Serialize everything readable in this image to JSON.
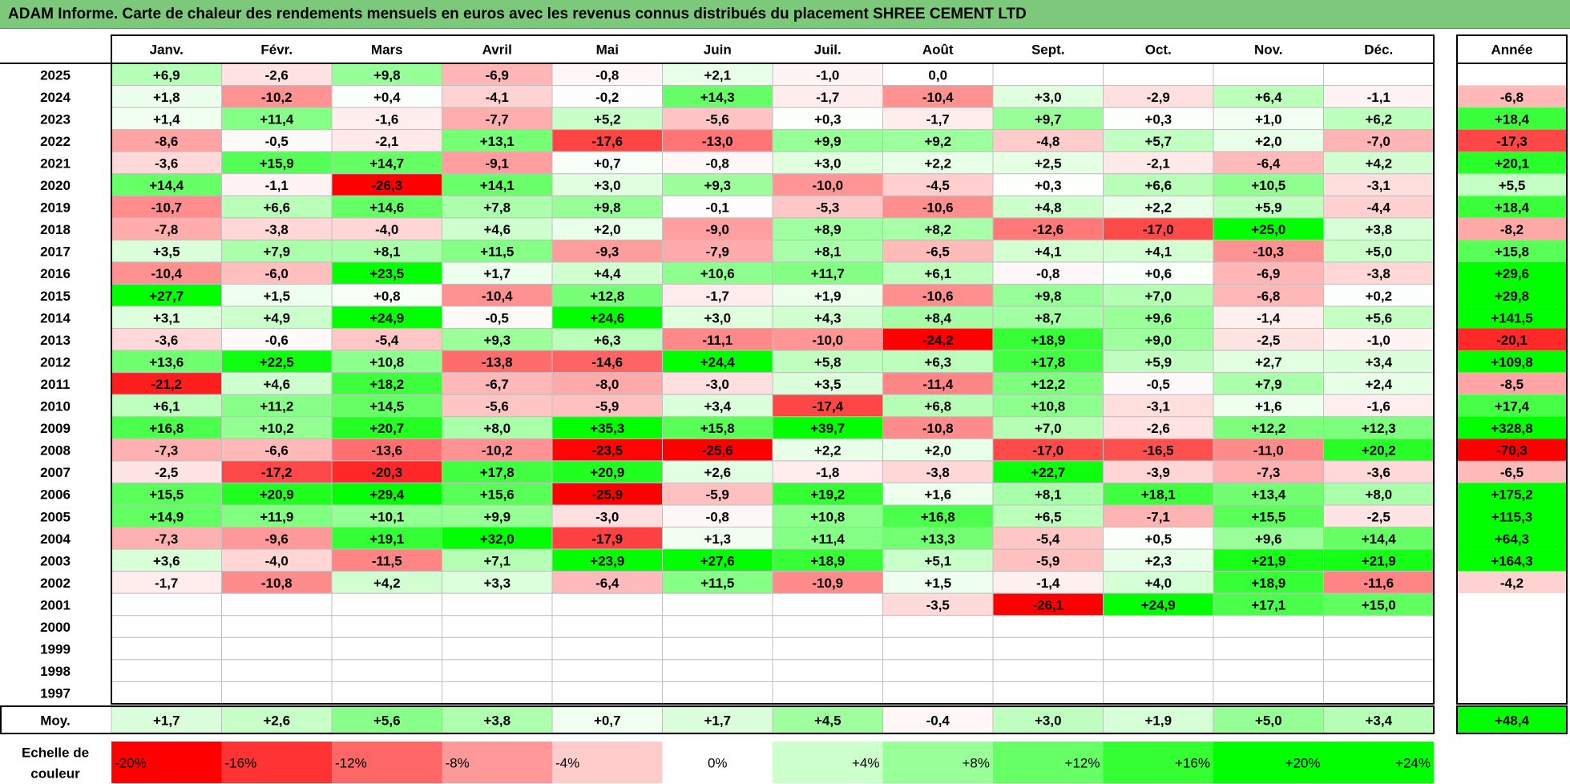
{
  "title": "ADAM Informe. Carte de chaleur des rendements mensuels en euros avec les revenus connus distribués du placement SHREE CEMENT LTD",
  "chart_data": {
    "type": "heatmap",
    "columns": [
      "Janv.",
      "Févr.",
      "Mars",
      "Avril",
      "Mai",
      "Juin",
      "Juil.",
      "Août",
      "Sept.",
      "Oct.",
      "Nov.",
      "Déc."
    ],
    "year_header": "Année",
    "rows": [
      {
        "year": "2025",
        "months": [
          6.9,
          -2.6,
          9.8,
          -6.9,
          -0.8,
          2.1,
          -1.0,
          0.0,
          null,
          null,
          null,
          null
        ],
        "annual": null
      },
      {
        "year": "2024",
        "months": [
          1.8,
          -10.2,
          0.4,
          -4.1,
          -0.2,
          14.3,
          -1.7,
          -10.4,
          3.0,
          -2.9,
          6.4,
          -1.1
        ],
        "annual": -6.8
      },
      {
        "year": "2023",
        "months": [
          1.4,
          11.4,
          -1.6,
          -7.7,
          5.2,
          -5.6,
          0.3,
          -1.7,
          9.7,
          0.3,
          1.0,
          6.2
        ],
        "annual": 18.4
      },
      {
        "year": "2022",
        "months": [
          -8.6,
          -0.5,
          -2.1,
          13.1,
          -17.6,
          -13.0,
          9.9,
          9.2,
          -4.8,
          5.7,
          2.0,
          -7.0
        ],
        "annual": -17.3
      },
      {
        "year": "2021",
        "months": [
          -3.6,
          15.9,
          14.7,
          -9.1,
          0.7,
          -0.8,
          3.0,
          2.2,
          2.5,
          -2.1,
          -6.4,
          4.2
        ],
        "annual": 20.1
      },
      {
        "year": "2020",
        "months": [
          14.4,
          -1.1,
          -26.3,
          14.1,
          3.0,
          9.3,
          -10.0,
          -4.5,
          0.3,
          6.6,
          10.5,
          -3.1
        ],
        "annual": 5.5
      },
      {
        "year": "2019",
        "months": [
          -10.7,
          6.6,
          14.6,
          7.8,
          9.8,
          -0.1,
          -5.3,
          -10.6,
          4.8,
          2.2,
          5.9,
          -4.4
        ],
        "annual": 18.4
      },
      {
        "year": "2018",
        "months": [
          -7.8,
          -3.8,
          -4.0,
          4.6,
          2.0,
          -9.0,
          8.9,
          8.2,
          -12.6,
          -17.0,
          25.0,
          3.8
        ],
        "annual": -8.2
      },
      {
        "year": "2017",
        "months": [
          3.5,
          7.9,
          8.1,
          11.5,
          -9.3,
          -7.9,
          8.1,
          -6.5,
          4.1,
          4.1,
          -10.3,
          5.0
        ],
        "annual": 15.8
      },
      {
        "year": "2016",
        "months": [
          -10.4,
          -6.0,
          23.5,
          1.7,
          4.4,
          10.6,
          11.7,
          6.1,
          -0.8,
          0.6,
          -6.9,
          -3.8
        ],
        "annual": 29.6
      },
      {
        "year": "2015",
        "months": [
          27.7,
          1.5,
          0.8,
          -10.4,
          12.8,
          -1.7,
          1.9,
          -10.6,
          9.8,
          7.0,
          -6.8,
          0.2
        ],
        "annual": 29.8
      },
      {
        "year": "2014",
        "months": [
          3.1,
          4.9,
          24.9,
          -0.5,
          24.6,
          3.0,
          4.3,
          8.4,
          8.7,
          9.6,
          -1.4,
          5.6
        ],
        "annual": 141.5
      },
      {
        "year": "2013",
        "months": [
          -3.6,
          -0.6,
          -5.4,
          9.3,
          6.3,
          -11.1,
          -10.0,
          -24.2,
          18.9,
          9.0,
          -2.5,
          -1.0
        ],
        "annual": -20.1
      },
      {
        "year": "2012",
        "months": [
          13.6,
          22.5,
          10.8,
          -13.8,
          -14.6,
          24.4,
          5.8,
          6.3,
          17.8,
          5.9,
          2.7,
          3.4
        ],
        "annual": 109.8
      },
      {
        "year": "2011",
        "months": [
          -21.2,
          4.6,
          18.2,
          -6.7,
          -8.0,
          -3.0,
          3.5,
          -11.4,
          12.2,
          -0.5,
          7.9,
          2.4
        ],
        "annual": -8.5
      },
      {
        "year": "2010",
        "months": [
          6.1,
          11.2,
          14.5,
          -5.6,
          -5.9,
          3.4,
          -17.4,
          6.8,
          10.8,
          -3.1,
          1.6,
          -1.6
        ],
        "annual": 17.4
      },
      {
        "year": "2009",
        "months": [
          16.8,
          10.2,
          20.7,
          8.0,
          35.3,
          15.8,
          39.7,
          -10.8,
          7.0,
          -2.6,
          12.2,
          12.3
        ],
        "annual": 328.8
      },
      {
        "year": "2008",
        "months": [
          -7.3,
          -6.6,
          -13.6,
          -10.2,
          -23.5,
          -25.6,
          2.2,
          2.0,
          -17.0,
          -16.5,
          -11.0,
          20.2
        ],
        "annual": -70.3
      },
      {
        "year": "2007",
        "months": [
          -2.5,
          -17.2,
          -20.3,
          17.8,
          20.9,
          2.6,
          -1.8,
          -3.8,
          22.7,
          -3.9,
          -7.3,
          -3.6
        ],
        "annual": -6.5
      },
      {
        "year": "2006",
        "months": [
          15.5,
          20.9,
          29.4,
          15.6,
          -25.9,
          -5.9,
          19.2,
          1.6,
          8.1,
          18.1,
          13.4,
          8.0
        ],
        "annual": 175.2
      },
      {
        "year": "2005",
        "months": [
          14.9,
          11.9,
          10.1,
          9.9,
          -3.0,
          -0.8,
          10.8,
          16.8,
          6.5,
          -7.1,
          15.5,
          -2.5
        ],
        "annual": 115.3
      },
      {
        "year": "2004",
        "months": [
          -7.3,
          -9.6,
          19.1,
          32.0,
          -17.9,
          1.3,
          11.4,
          13.3,
          -5.4,
          0.5,
          9.6,
          14.4
        ],
        "annual": 64.3
      },
      {
        "year": "2003",
        "months": [
          3.6,
          -4.0,
          -11.5,
          7.1,
          23.9,
          27.6,
          18.9,
          5.1,
          -5.9,
          2.3,
          21.9,
          21.9
        ],
        "annual": 164.3
      },
      {
        "year": "2002",
        "months": [
          -1.7,
          -10.8,
          4.2,
          3.3,
          -6.4,
          11.5,
          -10.9,
          1.5,
          -1.4,
          4.0,
          18.9,
          -11.6
        ],
        "annual": -4.2
      },
      {
        "year": "2001",
        "months": [
          null,
          null,
          null,
          null,
          null,
          null,
          null,
          -3.5,
          -26.1,
          24.9,
          17.1,
          15.0
        ],
        "annual": null
      },
      {
        "year": "2000",
        "months": [
          null,
          null,
          null,
          null,
          null,
          null,
          null,
          null,
          null,
          null,
          null,
          null
        ],
        "annual": null
      },
      {
        "year": "1999",
        "months": [
          null,
          null,
          null,
          null,
          null,
          null,
          null,
          null,
          null,
          null,
          null,
          null
        ],
        "annual": null
      },
      {
        "year": "1998",
        "months": [
          null,
          null,
          null,
          null,
          null,
          null,
          null,
          null,
          null,
          null,
          null,
          null
        ],
        "annual": null
      },
      {
        "year": "1997",
        "months": [
          null,
          null,
          null,
          null,
          null,
          null,
          null,
          null,
          null,
          null,
          null,
          null
        ],
        "annual": null
      }
    ],
    "average": {
      "label": "Moy.",
      "months": [
        1.7,
        2.6,
        5.6,
        3.8,
        0.7,
        1.7,
        4.5,
        -0.4,
        3.0,
        1.9,
        5.0,
        3.4
      ],
      "annual": 48.4
    },
    "color_scale": {
      "label": "Echelle de couleur",
      "steps": [
        {
          "label": "-20%",
          "value": -20
        },
        {
          "label": "-16%",
          "value": -16
        },
        {
          "label": "-12%",
          "value": -12
        },
        {
          "label": "-8%",
          "value": -8
        },
        {
          "label": "-4%",
          "value": -4
        },
        {
          "label": "0%",
          "value": 0
        },
        {
          "label": "+4%",
          "value": 4
        },
        {
          "label": "+8%",
          "value": 8
        },
        {
          "label": "+12%",
          "value": 12
        },
        {
          "label": "+16%",
          "value": 16
        },
        {
          "label": "+20%",
          "value": 20
        },
        {
          "label": "+24%",
          "value": 24
        }
      ]
    },
    "colors": {
      "negative_max": "#ff0000",
      "neutral": "#ffffff",
      "positive_max": "#00ff00",
      "title_bg": "#7dc97b"
    }
  }
}
